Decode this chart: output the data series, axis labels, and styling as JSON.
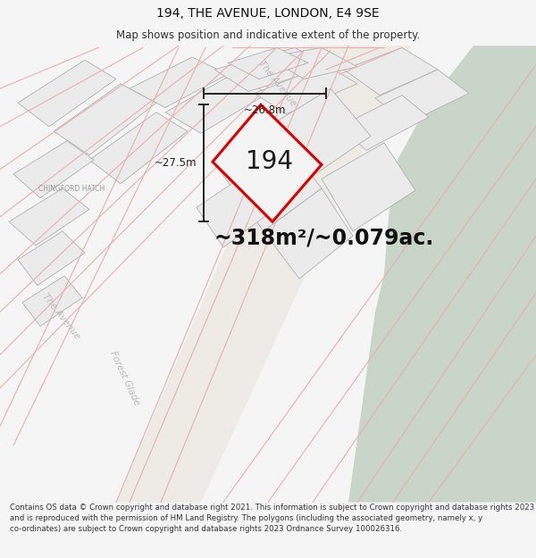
{
  "title": "194, THE AVENUE, LONDON, E4 9SE",
  "subtitle": "Map shows position and indicative extent of the property.",
  "area_text": "~318m²/~0.079ac.",
  "property_number": "194",
  "dim_width": "~26.8m",
  "dim_height": "~27.5m",
  "footer_text": "Contains OS data © Crown copyright and database right 2021. This information is subject to Crown copyright and database rights 2023 and is reproduced with the permission of HM Land Registry. The polygons (including the associated geometry, namely x, y co-ordinates) are subject to Crown copyright and database rights 2023 Ordnance Survey 100026316.",
  "bg_color": "#f5f5f5",
  "map_bg": "#ffffff",
  "green_color": "#c8d5c8",
  "road_color": "#f0ece8",
  "parcel_fill": "#ebebeb",
  "parcel_edge": "#b0b0b0",
  "property_fill": "#f5f4f4",
  "property_outline": "#dd0000",
  "road_line": "#e8b0b0",
  "dim_color": "#222222",
  "label_color": "#bbbbbb",
  "place_label_color": "#999999",
  "title_fontsize": 10,
  "subtitle_fontsize": 8.5,
  "area_fontsize": 17,
  "property_num_fontsize": 20,
  "dim_fontsize": 8.5,
  "footer_fontsize": 6.2
}
